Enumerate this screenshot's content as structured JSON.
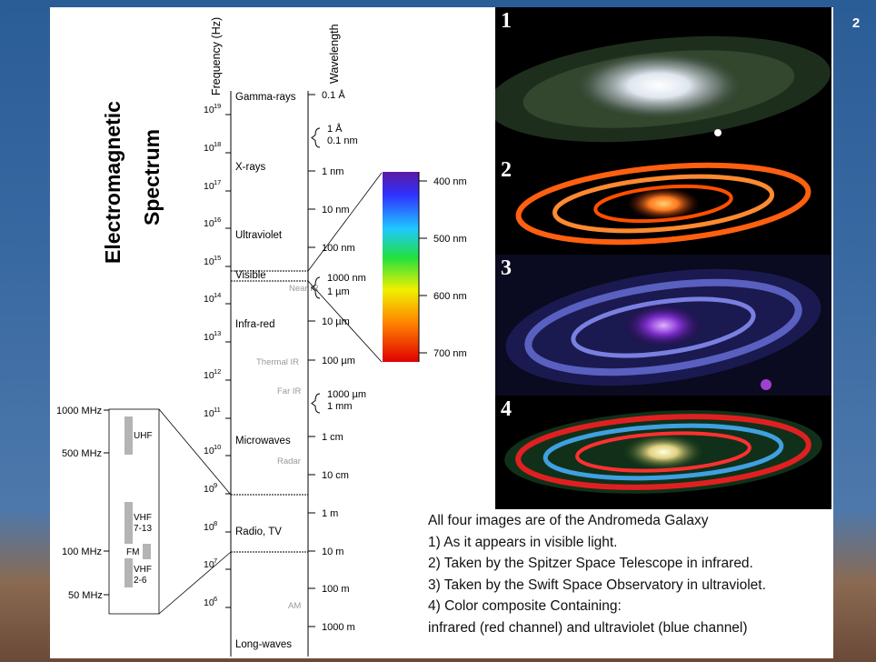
{
  "slide_number": "2",
  "spectrum": {
    "title_line1": "Electromagnetic",
    "title_line2": "Spectrum",
    "frequency_header": "Frequency (Hz)",
    "wavelength_header": "Wavelength",
    "frequency_ticks": [
      "10",
      "10",
      "10",
      "10",
      "10",
      "10",
      "10",
      "10",
      "10",
      "10",
      "10",
      "10",
      "10",
      "10"
    ],
    "frequency_exponents": [
      "19",
      "18",
      "17",
      "16",
      "15",
      "14",
      "13",
      "12",
      "11",
      "10",
      "9",
      "8",
      "7",
      "6"
    ],
    "bands": [
      "Gamma-rays",
      "X-rays",
      "Ultraviolet",
      "Visible",
      "Infra-red",
      "Microwaves",
      "Radio, TV",
      "Long-waves"
    ],
    "sub_bands": [
      "Near IR",
      "Thermal IR",
      "Far IR",
      "Radar",
      "AM"
    ],
    "wavelengths": [
      "0.1 Å",
      "1 Å",
      "0.1 nm",
      "1 nm",
      "10 nm",
      "100 nm",
      "1000 nm",
      "1 µm",
      "10 µm",
      "100 µm",
      "1000 µm",
      "1 mm",
      "1 cm",
      "10 cm",
      "1 m",
      "10 m",
      "100 m",
      "1000 m"
    ],
    "visible_scale": [
      "400 nm",
      "500 nm",
      "600 nm",
      "700 nm"
    ],
    "radio_scale": [
      "1000 MHz",
      "500 MHz",
      "100 MHz",
      "50 MHz"
    ],
    "radio_bands": [
      "UHF",
      "VHF",
      "7-13",
      "FM",
      "VHF",
      "2-6"
    ]
  },
  "galaxy_panels": [
    {
      "number": "1"
    },
    {
      "number": "2"
    },
    {
      "number": "3"
    },
    {
      "number": "4"
    }
  ],
  "caption": {
    "line1": "All four images are of the Andromeda Galaxy",
    "line2": "1) As it appears in visible light.",
    "line3": "2) Taken by the Spitzer Space Telescope in infrared.",
    "line4": "3) Taken by the Swift Space Observatory in ultraviolet.",
    "line5": "4) Color composite Containing:",
    "line6": "infrared (red channel) and ultraviolet (blue channel)"
  },
  "colors": {
    "slide_blue": "#3a6aa2",
    "uv_purple": "#5a1aa0",
    "ir_orange": "#ff7a20",
    "bar_gray": "#b4b4b4"
  }
}
